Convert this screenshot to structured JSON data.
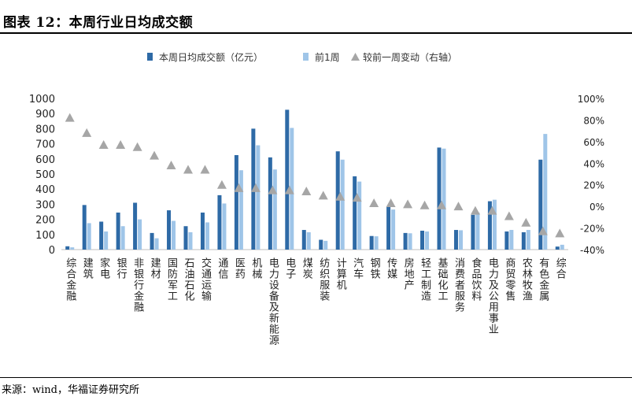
{
  "title": "图表 12：本周行业日均成交额",
  "source": "来源：wind，华福证券研究所",
  "chart_data": {
    "type": "bar",
    "title": "本周行业日均成交额",
    "categories": [
      "综合金融",
      "建筑",
      "家电",
      "银行",
      "非银行金融",
      "建材",
      "国防军工",
      "石油石化",
      "交通运输",
      "通信",
      "医药",
      "机械",
      "电力设备及新能源",
      "电子",
      "煤炭",
      "纺织服装",
      "计算机",
      "汽车",
      "钢铁",
      "传媒",
      "房地产",
      "轻工制造",
      "基础化工",
      "消费者服务",
      "食品饮料",
      "电力及公用事业",
      "商贸零售",
      "农林牧渔",
      "有色金属",
      "综合"
    ],
    "series": [
      {
        "name": "本周日均成交额（亿元）",
        "color": "#2e6aa6",
        "axis": "left",
        "values": [
          22,
          295,
          185,
          245,
          310,
          110,
          260,
          155,
          245,
          360,
          625,
          800,
          610,
          925,
          130,
          65,
          650,
          485,
          90,
          285,
          110,
          125,
          675,
          130,
          230,
          320,
          120,
          115,
          595,
          20
        ]
      },
      {
        "name": "前1周",
        "color": "#9fc5e8",
        "axis": "left",
        "values": [
          15,
          175,
          120,
          155,
          200,
          75,
          190,
          115,
          180,
          305,
          525,
          690,
          530,
          805,
          115,
          58,
          595,
          450,
          88,
          265,
          108,
          120,
          668,
          128,
          245,
          330,
          130,
          130,
          765,
          32
        ]
      },
      {
        "name": "较前一周变动（右轴）",
        "color": "#a6a6a6",
        "axis": "right",
        "marker": "triangle",
        "values": [
          82,
          68,
          57,
          57,
          55,
          47,
          38,
          34,
          34,
          20,
          17,
          17,
          15,
          15,
          14,
          10,
          9,
          8,
          3,
          3,
          2,
          1,
          1,
          0,
          -4,
          -4,
          -9,
          -15,
          -23,
          -25
        ]
      }
    ],
    "ylim_left": [
      0,
      1000
    ],
    "yticks_left": [
      0,
      100,
      200,
      300,
      400,
      500,
      600,
      700,
      800,
      900,
      1000
    ],
    "ylim_right": [
      -40,
      100
    ],
    "yticks_right": [
      "100%",
      "80%",
      "60%",
      "40%",
      "20%",
      "0%",
      "-20%",
      "-40%"
    ],
    "legend_position": "top-center",
    "grid": false
  }
}
